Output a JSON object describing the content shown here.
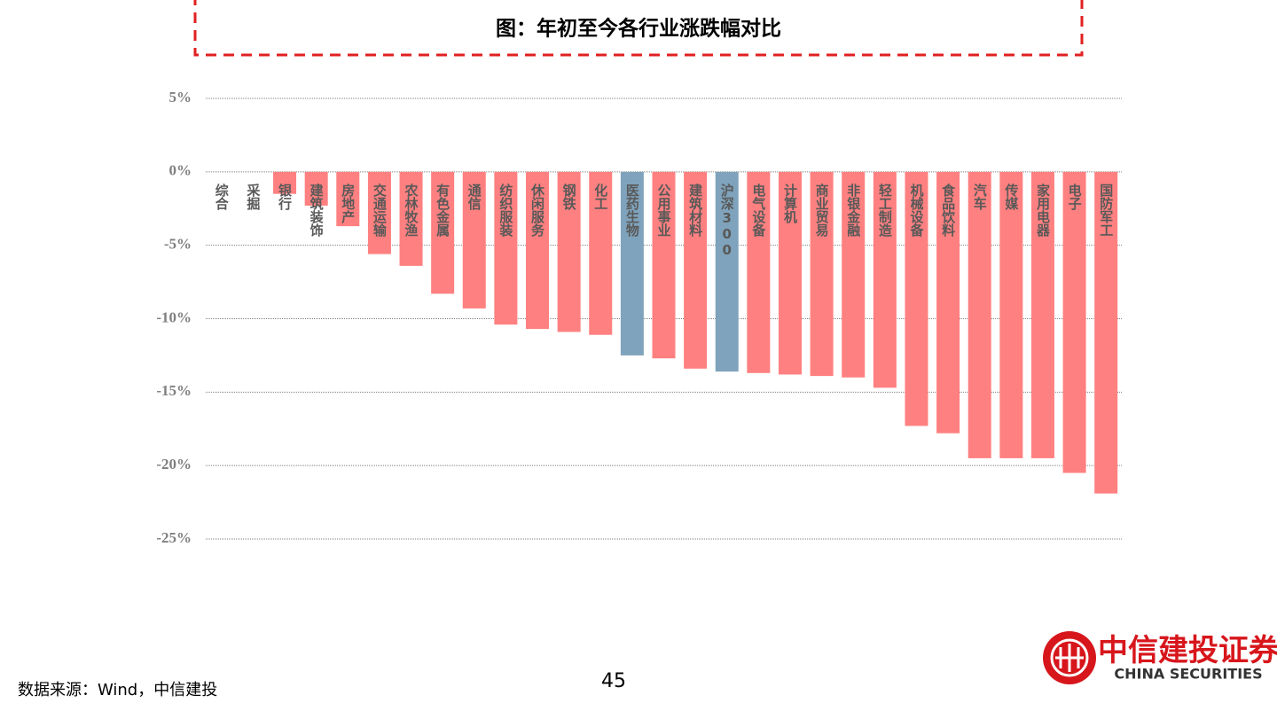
{
  "chart_data": {
    "type": "bar",
    "title": "图：年初至今各行业涨跌幅对比",
    "categories": [
      "综合",
      "采掘",
      "银行",
      "建筑装饰",
      "房地产",
      "交通运输",
      "农林牧渔",
      "有色金属",
      "通信",
      "纺织服装",
      "休闲服务",
      "钢铁",
      "化工",
      "医药生物",
      "公用事业",
      "建筑材料",
      "沪深300",
      "电气设备",
      "计算机",
      "商业贸易",
      "非银金融",
      "轻工制造",
      "机械设备",
      "食品饮料",
      "汽车",
      "传媒",
      "家用电器",
      "电子",
      "国防军工"
    ],
    "values": [
      0,
      0,
      -1.5,
      -2.3,
      -3.7,
      -5.6,
      -6.4,
      -8.3,
      -9.3,
      -10.4,
      -10.7,
      -10.9,
      -11.1,
      -12.5,
      -12.7,
      -13.4,
      -13.6,
      -13.7,
      -13.8,
      -13.9,
      -14.0,
      -14.7,
      -17.3,
      -17.8,
      -19.5,
      -19.5,
      -19.5,
      -20.5,
      -21.9
    ],
    "colors": [
      "#ff8080",
      "#ff8080",
      "#ff8080",
      "#ff8080",
      "#ff8080",
      "#ff8080",
      "#ff8080",
      "#ff8080",
      "#ff8080",
      "#ff8080",
      "#ff8080",
      "#ff8080",
      "#ff8080",
      "#7fa3bc",
      "#ff8080",
      "#ff8080",
      "#7fa3bc",
      "#ff8080",
      "#ff8080",
      "#ff8080",
      "#ff8080",
      "#ff8080",
      "#ff8080",
      "#ff8080",
      "#ff8080",
      "#ff8080",
      "#ff8080",
      "#ff8080",
      "#ff8080"
    ],
    "ylim": [
      -25,
      5
    ],
    "yticks": [
      {
        "value": 5,
        "label": "5%"
      },
      {
        "value": 0,
        "label": "0%"
      },
      {
        "value": -5,
        "label": "-5%"
      },
      {
        "value": -10,
        "label": "-10%"
      },
      {
        "value": -15,
        "label": "-15%"
      },
      {
        "value": -20,
        "label": "-20%"
      },
      {
        "value": -25,
        "label": "-25%"
      }
    ],
    "grid": true
  },
  "footer": {
    "source": "数据来源：Wind，中信建投",
    "page": "45",
    "logo_cn": "中信建投证券",
    "logo_en": "CHINA SECURITIES"
  }
}
